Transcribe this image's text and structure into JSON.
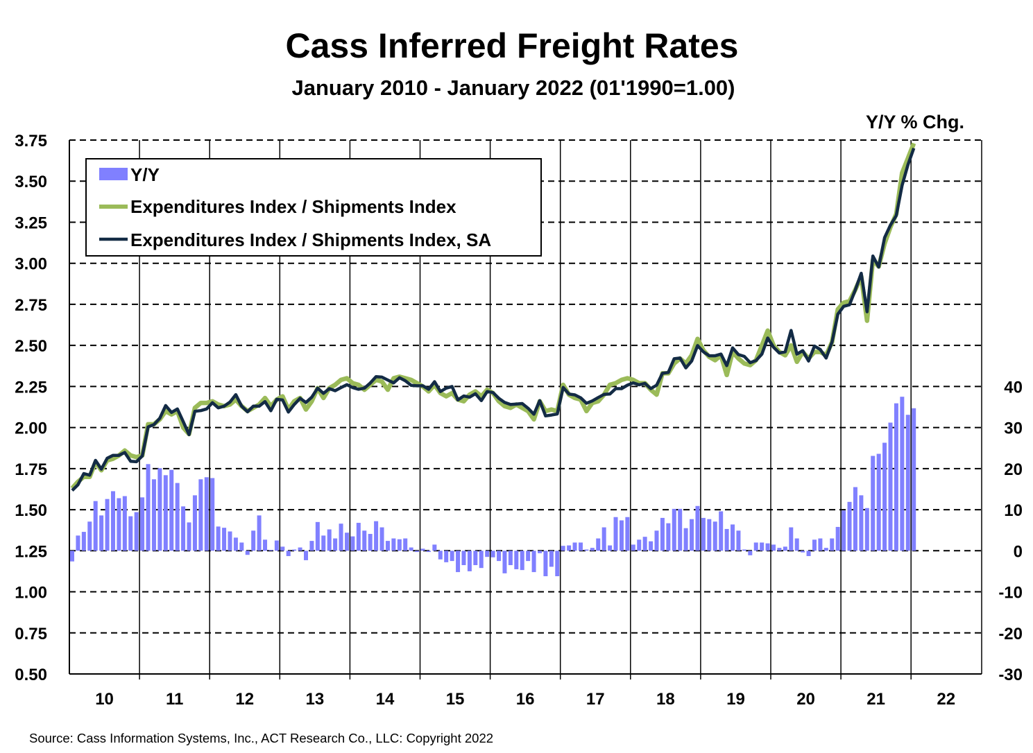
{
  "chart_data": {
    "type": "line+bar",
    "title": "Cass Inferred Freight Rates",
    "subtitle": "January 2010 - January 2022 (01'1990=1.00)",
    "right_axis_label": "Y/Y % Chg.",
    "source": "Source: Cass Information Systems, Inc., ACT Research Co., LLC: Copyright 2022",
    "x_start": "2010-01",
    "x_end": "2022-01",
    "x_tick_labels": [
      "10",
      "11",
      "12",
      "13",
      "14",
      "15",
      "16",
      "17",
      "18",
      "19",
      "20",
      "21",
      "22"
    ],
    "left_axis": {
      "ylim": [
        0.5,
        3.75
      ],
      "ticks": [
        "3.75",
        "3.50",
        "3.25",
        "3.00",
        "2.75",
        "2.50",
        "2.25",
        "2.00",
        "1.75",
        "1.50",
        "1.25",
        "1.00",
        "0.75",
        "0.50"
      ]
    },
    "right_axis": {
      "ylim": [
        -30,
        100
      ],
      "ticks": [
        "40",
        "30",
        "20",
        "10",
        "0",
        "-10",
        "-20",
        "-30"
      ]
    },
    "grid": "dashed horizontal, solid vertical at years",
    "legend_placement": "top-left",
    "colors": {
      "yy": "#8080FF",
      "nsa": "#9BBB59",
      "sa": "#132B45"
    },
    "series": [
      {
        "name": "Y/Y",
        "type": "bar",
        "axis": "right",
        "values": [
          -2.6,
          3.7,
          4.6,
          7.1,
          12.1,
          8.6,
          12.6,
          14.5,
          12.8,
          13.3,
          8.4,
          9.4,
          13.0,
          21.1,
          17.4,
          20.1,
          18.4,
          19.7,
          16.5,
          10.8,
          6.9,
          13.5,
          17.4,
          17.9,
          17.7,
          5.9,
          5.6,
          4.7,
          3.2,
          2.0,
          -1.0,
          4.9,
          8.6,
          2.7,
          0.2,
          2.5,
          1.0,
          -1.3,
          0.3,
          0.8,
          -2.3,
          2.4,
          7.0,
          3.7,
          5.2,
          3.0,
          6.6,
          4.4,
          3.5,
          6.8,
          4.9,
          4.1,
          7.2,
          5.7,
          2.4,
          3.0,
          2.8,
          3.0,
          0.8,
          -0.3,
          0.5,
          -0.3,
          1.5,
          -2.1,
          -2.8,
          -2.5,
          -5.2,
          -3.5,
          -5.0,
          -3.5,
          -4.2,
          -1.5,
          -1.6,
          -2.5,
          -5.5,
          -3.5,
          -4.5,
          -4.7,
          -2.5,
          -5.2,
          -0.6,
          -6.2,
          -3.9,
          -6.2,
          1.2,
          1.3,
          2.0,
          2.0,
          0.3,
          0.7,
          3.0,
          5.7,
          1.3,
          8.2,
          7.4,
          8.2,
          1.5,
          2.7,
          3.4,
          2.3,
          4.9,
          8.0,
          6.7,
          10.2,
          10.2,
          5.5,
          7.7,
          10.9,
          8.0,
          7.7,
          7.1,
          9.6,
          5.3,
          6.4,
          4.9,
          0.3,
          -1.1,
          2.0,
          2.0,
          1.8,
          1.5,
          0.7,
          1.0,
          5.7,
          3.0,
          -0.4,
          -1.3,
          2.7,
          3.0,
          0.7,
          3.0,
          5.8,
          9.8,
          11.9,
          15.5,
          13.5,
          10.4,
          23.1,
          23.6,
          26.3,
          31.2,
          35.9,
          37.5,
          33.1,
          34.7
        ]
      },
      {
        "name": "Expenditures Index / Shipments Index",
        "type": "line",
        "axis": "left",
        "values": [
          1.63,
          1.67,
          1.7,
          1.7,
          1.79,
          1.74,
          1.8,
          1.81,
          1.83,
          1.86,
          1.83,
          1.82,
          1.83,
          2.02,
          2.02,
          2.05,
          2.1,
          2.08,
          2.1,
          2.0,
          1.96,
          2.12,
          2.15,
          2.15,
          2.16,
          2.14,
          2.13,
          2.14,
          2.17,
          2.13,
          2.1,
          2.12,
          2.14,
          2.18,
          2.13,
          2.17,
          2.19,
          2.11,
          2.16,
          2.18,
          2.11,
          2.16,
          2.24,
          2.18,
          2.24,
          2.26,
          2.29,
          2.3,
          2.27,
          2.26,
          2.23,
          2.26,
          2.29,
          2.28,
          2.23,
          2.3,
          2.31,
          2.3,
          2.29,
          2.27,
          2.25,
          2.22,
          2.26,
          2.21,
          2.19,
          2.21,
          2.17,
          2.16,
          2.2,
          2.22,
          2.19,
          2.23,
          2.21,
          2.16,
          2.13,
          2.12,
          2.14,
          2.12,
          2.1,
          2.05,
          2.16,
          2.1,
          2.11,
          2.1,
          2.26,
          2.2,
          2.18,
          2.17,
          2.1,
          2.15,
          2.16,
          2.2,
          2.26,
          2.27,
          2.29,
          2.3,
          2.29,
          2.27,
          2.27,
          2.23,
          2.2,
          2.33,
          2.33,
          2.39,
          2.42,
          2.39,
          2.44,
          2.54,
          2.47,
          2.43,
          2.41,
          2.44,
          2.32,
          2.46,
          2.42,
          2.39,
          2.38,
          2.41,
          2.5,
          2.59,
          2.5,
          2.46,
          2.44,
          2.5,
          2.4,
          2.46,
          2.42,
          2.46,
          2.46,
          2.44,
          2.52,
          2.72,
          2.76,
          2.77,
          2.84,
          2.92,
          2.65,
          3.02,
          2.98,
          3.12,
          3.22,
          3.3,
          3.55,
          3.64,
          3.73
        ]
      },
      {
        "name": "Expenditures Index / Shipments Index, SA",
        "type": "line",
        "axis": "left",
        "values": [
          1.617,
          1.652,
          1.72,
          1.71,
          1.8,
          1.747,
          1.813,
          1.831,
          1.831,
          1.848,
          1.795,
          1.792,
          1.827,
          2.004,
          2.018,
          2.057,
          2.134,
          2.092,
          2.113,
          2.036,
          1.957,
          2.099,
          2.103,
          2.113,
          2.151,
          2.12,
          2.13,
          2.155,
          2.2,
          2.13,
          2.096,
          2.13,
          2.13,
          2.158,
          2.102,
          2.172,
          2.168,
          2.094,
          2.14,
          2.178,
          2.153,
          2.185,
          2.24,
          2.208,
          2.237,
          2.224,
          2.243,
          2.261,
          2.243,
          2.233,
          2.24,
          2.271,
          2.31,
          2.307,
          2.289,
          2.272,
          2.303,
          2.285,
          2.257,
          2.254,
          2.254,
          2.233,
          2.279,
          2.219,
          2.24,
          2.25,
          2.168,
          2.192,
          2.185,
          2.206,
          2.164,
          2.219,
          2.213,
          2.178,
          2.153,
          2.14,
          2.143,
          2.146,
          2.118,
          2.081,
          2.164,
          2.071,
          2.076,
          2.083,
          2.244,
          2.204,
          2.199,
          2.181,
          2.148,
          2.162,
          2.183,
          2.202,
          2.204,
          2.237,
          2.237,
          2.258,
          2.272,
          2.26,
          2.269,
          2.237,
          2.258,
          2.33,
          2.335,
          2.419,
          2.423,
          2.363,
          2.405,
          2.499,
          2.461,
          2.437,
          2.437,
          2.447,
          2.377,
          2.485,
          2.444,
          2.433,
          2.395,
          2.408,
          2.447,
          2.545,
          2.489,
          2.454,
          2.461,
          2.591,
          2.447,
          2.468,
          2.405,
          2.496,
          2.475,
          2.423,
          2.52,
          2.69,
          2.738,
          2.747,
          2.839,
          2.939,
          2.705,
          3.044,
          2.977,
          3.156,
          3.232,
          3.29,
          3.474,
          3.6,
          3.7
        ]
      }
    ]
  }
}
